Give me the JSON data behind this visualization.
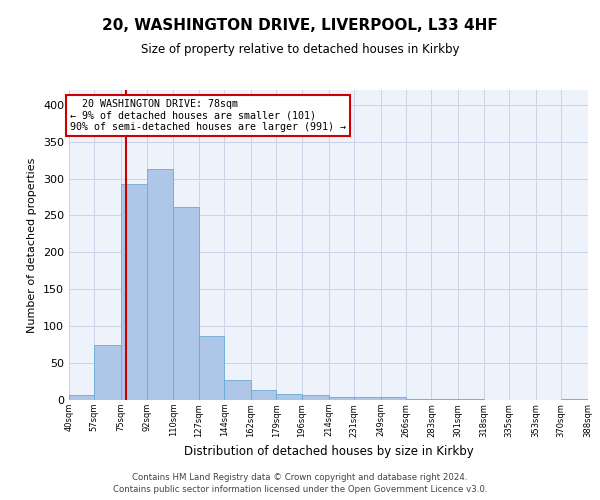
{
  "title_line1": "20, WASHINGTON DRIVE, LIVERPOOL, L33 4HF",
  "title_line2": "Size of property relative to detached houses in Kirkby",
  "xlabel": "Distribution of detached houses by size in Kirkby",
  "ylabel": "Number of detached properties",
  "footer_line1": "Contains HM Land Registry data © Crown copyright and database right 2024.",
  "footer_line2": "Contains public sector information licensed under the Open Government Licence v3.0.",
  "annotation_line1": "  20 WASHINGTON DRIVE: 78sqm  ",
  "annotation_line2": "← 9% of detached houses are smaller (101)",
  "annotation_line3": "90% of semi-detached houses are larger (991) →",
  "bar_edges": [
    40,
    57,
    75,
    92,
    110,
    127,
    144,
    162,
    179,
    196,
    214,
    231,
    249,
    266,
    283,
    301,
    318,
    335,
    353,
    370,
    388
  ],
  "bar_heights": [
    7,
    75,
    293,
    313,
    262,
    87,
    27,
    14,
    8,
    7,
    4,
    4,
    4,
    2,
    1,
    1,
    0,
    0,
    0,
    2
  ],
  "bar_color": "#aec6e8",
  "bar_edgecolor": "#6aaad4",
  "property_line_x": 78,
  "property_line_color": "#cc0000",
  "ylim": [
    0,
    420
  ],
  "xlim": [
    40,
    388
  ],
  "background_color": "#eef2fb",
  "grid_color": "#c8d4e8",
  "tick_labels": [
    "40sqm",
    "57sqm",
    "75sqm",
    "92sqm",
    "110sqm",
    "127sqm",
    "144sqm",
    "162sqm",
    "179sqm",
    "196sqm",
    "214sqm",
    "231sqm",
    "249sqm",
    "266sqm",
    "283sqm",
    "301sqm",
    "318sqm",
    "335sqm",
    "353sqm",
    "370sqm",
    "388sqm"
  ],
  "yticks": [
    0,
    50,
    100,
    150,
    200,
    250,
    300,
    350,
    400
  ]
}
